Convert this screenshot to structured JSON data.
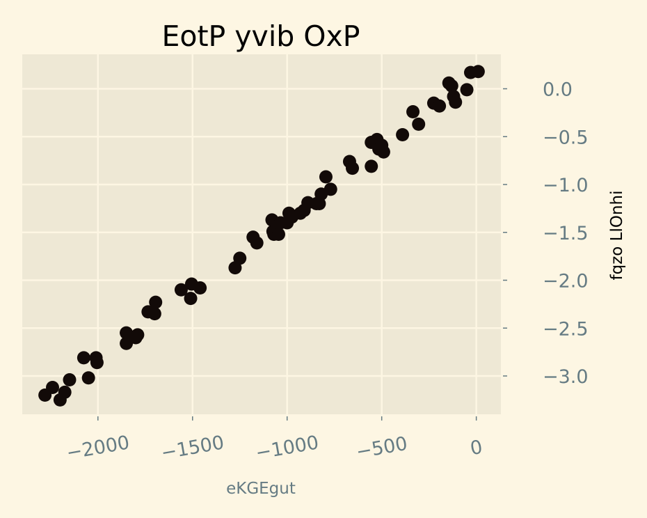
{
  "chart_data": {
    "type": "scatter",
    "title": "EotP yvib OxP",
    "xlabel": "eKGEgut",
    "ylabel": "fqzo LlOnhi",
    "xlim": [
      -2400,
      130
    ],
    "ylim": [
      -3.4,
      0.36
    ],
    "xticks": [
      -2000,
      -1500,
      -1000,
      -500,
      0
    ],
    "xtick_labels": [
      "−2000",
      "−1500",
      "−1000",
      "−500",
      "0"
    ],
    "yticks": [
      0.0,
      -0.5,
      -1.0,
      -1.5,
      -2.0,
      -2.5,
      -3.0
    ],
    "ytick_labels": [
      "0.0",
      "−0.5",
      "−1.0",
      "−1.5",
      "−2.0",
      "−2.5",
      "−3.0"
    ],
    "grid": true,
    "y_axis_side": "right",
    "colors": {
      "background": "#fdf6e3",
      "plot_area": "#eee8d5",
      "grid": "#fdf6e3",
      "marker": "#120a08",
      "tick_text": "#657b83"
    },
    "points": [
      [
        -2280,
        -3.2
      ],
      [
        -2240,
        -3.12
      ],
      [
        -2200,
        -3.25
      ],
      [
        -2175,
        -3.17
      ],
      [
        -2150,
        -3.04
      ],
      [
        -2075,
        -2.81
      ],
      [
        -2050,
        -3.02
      ],
      [
        -2010,
        -2.81
      ],
      [
        -2005,
        -2.86
      ],
      [
        -1850,
        -2.55
      ],
      [
        -1850,
        -2.66
      ],
      [
        -1800,
        -2.6
      ],
      [
        -1790,
        -2.57
      ],
      [
        -1735,
        -2.33
      ],
      [
        -1700,
        -2.35
      ],
      [
        -1695,
        -2.23
      ],
      [
        -1560,
        -2.1
      ],
      [
        -1510,
        -2.19
      ],
      [
        -1505,
        -2.04
      ],
      [
        -1460,
        -2.08
      ],
      [
        -1275,
        -1.87
      ],
      [
        -1250,
        -1.77
      ],
      [
        -1180,
        -1.55
      ],
      [
        -1160,
        -1.61
      ],
      [
        -1080,
        -1.37
      ],
      [
        -1075,
        -1.49
      ],
      [
        -1070,
        -1.52
      ],
      [
        -1060,
        -1.44
      ],
      [
        -1045,
        -1.52
      ],
      [
        -1035,
        -1.4
      ],
      [
        -1000,
        -1.4
      ],
      [
        -990,
        -1.3
      ],
      [
        -975,
        -1.34
      ],
      [
        -930,
        -1.3
      ],
      [
        -910,
        -1.27
      ],
      [
        -890,
        -1.19
      ],
      [
        -845,
        -1.2
      ],
      [
        -830,
        -1.2
      ],
      [
        -820,
        -1.1
      ],
      [
        -795,
        -0.92
      ],
      [
        -770,
        -1.05
      ],
      [
        -670,
        -0.76
      ],
      [
        -655,
        -0.83
      ],
      [
        -555,
        -0.56
      ],
      [
        -555,
        -0.81
      ],
      [
        -525,
        -0.53
      ],
      [
        -515,
        -0.63
      ],
      [
        -500,
        -0.59
      ],
      [
        -490,
        -0.66
      ],
      [
        -390,
        -0.48
      ],
      [
        -335,
        -0.24
      ],
      [
        -305,
        -0.37
      ],
      [
        -225,
        -0.15
      ],
      [
        -195,
        -0.18
      ],
      [
        -145,
        0.06
      ],
      [
        -130,
        0.03
      ],
      [
        -120,
        -0.08
      ],
      [
        -110,
        -0.14
      ],
      [
        -50,
        -0.01
      ],
      [
        -30,
        0.17
      ],
      [
        10,
        0.18
      ]
    ]
  }
}
